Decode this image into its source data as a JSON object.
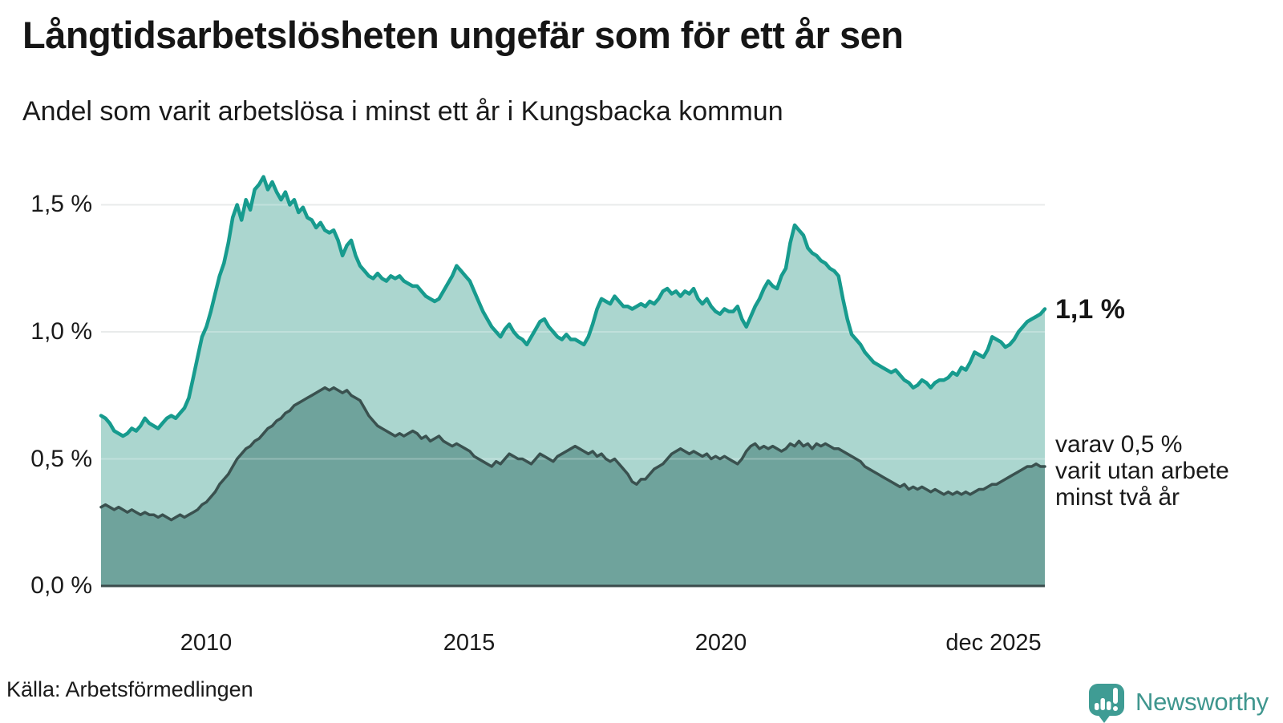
{
  "header": {
    "title": "Långtidsarbetslösheten ungefär som för ett år sen",
    "subtitle": "Andel som varit arbetslösa i minst ett år i Kungsbacka kommun"
  },
  "annotations": {
    "latest_value_label": "1,1 %",
    "secondary": [
      "varav 0,5 %",
      "varit utan arbete",
      "minst två år"
    ]
  },
  "footer": {
    "source": "Källa: Arbetsförmedlingen",
    "logo_text": "Newsworthy"
  },
  "colors": {
    "total_line": "#179b8e",
    "total_fill": "#abd6cf",
    "twoyear_line": "#3a514f",
    "twoyear_fill": "#6fa39c",
    "axis_line": "#3a4b4b",
    "gridline": "#e2e5e5",
    "logo_teal": "#3f968e"
  },
  "chart_data": {
    "type": "area",
    "title": "Långtidsarbetslösheten ungefär som för ett år sen",
    "subtitle": "Andel som varit arbetslösa i minst ett år i Kungsbacka kommun",
    "unit": "%",
    "frequency": "monthly",
    "x_start": "2008-01",
    "x_end": "2025-12",
    "ylim": [
      0,
      1.7
    ],
    "grid": "horizontal",
    "y_tick_values": [
      1.5,
      1.0,
      0.5,
      0.0
    ],
    "y_tick_labels": [
      "1,5 %",
      "1,0 %",
      "0,5 %",
      "0,0 %"
    ],
    "x_tick_labels": [
      "2010",
      "2015",
      "2020",
      "dec 2025"
    ],
    "latest_total": 1.1,
    "latest_twoyear": 0.5,
    "series": [
      {
        "name": "Andel arbetslösa minst ett år",
        "color": "#179b8e",
        "fill": "#abd6cf",
        "values": [
          0.67,
          0.66,
          0.64,
          0.61,
          0.6,
          0.59,
          0.6,
          0.62,
          0.61,
          0.63,
          0.66,
          0.64,
          0.63,
          0.62,
          0.64,
          0.66,
          0.67,
          0.66,
          0.68,
          0.7,
          0.74,
          0.82,
          0.9,
          0.98,
          1.02,
          1.08,
          1.15,
          1.22,
          1.27,
          1.35,
          1.45,
          1.5,
          1.44,
          1.52,
          1.48,
          1.56,
          1.58,
          1.61,
          1.56,
          1.59,
          1.55,
          1.52,
          1.55,
          1.5,
          1.52,
          1.47,
          1.49,
          1.45,
          1.44,
          1.41,
          1.43,
          1.4,
          1.39,
          1.4,
          1.36,
          1.3,
          1.34,
          1.36,
          1.3,
          1.26,
          1.24,
          1.22,
          1.21,
          1.23,
          1.21,
          1.2,
          1.22,
          1.21,
          1.22,
          1.2,
          1.19,
          1.18,
          1.18,
          1.16,
          1.14,
          1.13,
          1.12,
          1.13,
          1.16,
          1.19,
          1.22,
          1.26,
          1.24,
          1.22,
          1.2,
          1.16,
          1.12,
          1.08,
          1.05,
          1.02,
          1.0,
          0.98,
          1.01,
          1.03,
          1.0,
          0.98,
          0.97,
          0.95,
          0.98,
          1.01,
          1.04,
          1.05,
          1.02,
          1.0,
          0.98,
          0.97,
          0.99,
          0.97,
          0.97,
          0.96,
          0.95,
          0.98,
          1.03,
          1.09,
          1.13,
          1.12,
          1.11,
          1.14,
          1.12,
          1.1,
          1.1,
          1.09,
          1.1,
          1.11,
          1.1,
          1.12,
          1.11,
          1.13,
          1.16,
          1.17,
          1.15,
          1.16,
          1.14,
          1.16,
          1.15,
          1.17,
          1.13,
          1.11,
          1.13,
          1.1,
          1.08,
          1.07,
          1.09,
          1.08,
          1.08,
          1.1,
          1.05,
          1.02,
          1.06,
          1.1,
          1.13,
          1.17,
          1.2,
          1.18,
          1.17,
          1.22,
          1.25,
          1.35,
          1.42,
          1.4,
          1.38,
          1.33,
          1.31,
          1.3,
          1.28,
          1.27,
          1.25,
          1.24,
          1.22,
          1.13,
          1.05,
          0.99,
          0.97,
          0.95,
          0.92,
          0.9,
          0.88,
          0.87,
          0.86,
          0.85,
          0.84,
          0.85,
          0.83,
          0.81,
          0.8,
          0.78,
          0.79,
          0.81,
          0.8,
          0.78,
          0.8,
          0.81,
          0.81,
          0.82,
          0.84,
          0.83,
          0.86,
          0.85,
          0.88,
          0.92,
          0.91,
          0.9,
          0.93,
          0.98,
          0.97,
          0.96,
          0.94,
          0.95,
          0.97,
          1.0,
          1.02,
          1.04,
          1.05,
          1.06,
          1.07,
          1.09
        ]
      },
      {
        "name": "varav utan arbete minst två år",
        "color": "#3a514f",
        "fill": "#6fa39c",
        "values": [
          0.31,
          0.32,
          0.31,
          0.3,
          0.31,
          0.3,
          0.29,
          0.3,
          0.29,
          0.28,
          0.29,
          0.28,
          0.28,
          0.27,
          0.28,
          0.27,
          0.26,
          0.27,
          0.28,
          0.27,
          0.28,
          0.29,
          0.3,
          0.32,
          0.33,
          0.35,
          0.37,
          0.4,
          0.42,
          0.44,
          0.47,
          0.5,
          0.52,
          0.54,
          0.55,
          0.57,
          0.58,
          0.6,
          0.62,
          0.63,
          0.65,
          0.66,
          0.68,
          0.69,
          0.71,
          0.72,
          0.73,
          0.74,
          0.75,
          0.76,
          0.77,
          0.78,
          0.77,
          0.78,
          0.77,
          0.76,
          0.77,
          0.75,
          0.74,
          0.73,
          0.7,
          0.67,
          0.65,
          0.63,
          0.62,
          0.61,
          0.6,
          0.59,
          0.6,
          0.59,
          0.6,
          0.61,
          0.6,
          0.58,
          0.59,
          0.57,
          0.58,
          0.59,
          0.57,
          0.56,
          0.55,
          0.56,
          0.55,
          0.54,
          0.53,
          0.51,
          0.5,
          0.49,
          0.48,
          0.47,
          0.49,
          0.48,
          0.5,
          0.52,
          0.51,
          0.5,
          0.5,
          0.49,
          0.48,
          0.5,
          0.52,
          0.51,
          0.5,
          0.49,
          0.51,
          0.52,
          0.53,
          0.54,
          0.55,
          0.54,
          0.53,
          0.52,
          0.53,
          0.51,
          0.52,
          0.5,
          0.49,
          0.5,
          0.48,
          0.46,
          0.44,
          0.41,
          0.4,
          0.42,
          0.42,
          0.44,
          0.46,
          0.47,
          0.48,
          0.5,
          0.52,
          0.53,
          0.54,
          0.53,
          0.52,
          0.53,
          0.52,
          0.51,
          0.52,
          0.5,
          0.51,
          0.5,
          0.51,
          0.5,
          0.49,
          0.48,
          0.5,
          0.53,
          0.55,
          0.56,
          0.54,
          0.55,
          0.54,
          0.55,
          0.54,
          0.53,
          0.54,
          0.56,
          0.55,
          0.57,
          0.55,
          0.56,
          0.54,
          0.56,
          0.55,
          0.56,
          0.55,
          0.54,
          0.54,
          0.53,
          0.52,
          0.51,
          0.5,
          0.49,
          0.47,
          0.46,
          0.45,
          0.44,
          0.43,
          0.42,
          0.41,
          0.4,
          0.39,
          0.4,
          0.38,
          0.39,
          0.38,
          0.39,
          0.38,
          0.37,
          0.38,
          0.37,
          0.36,
          0.37,
          0.36,
          0.37,
          0.36,
          0.37,
          0.36,
          0.37,
          0.38,
          0.38,
          0.39,
          0.4,
          0.4,
          0.41,
          0.42,
          0.43,
          0.44,
          0.45,
          0.46,
          0.47,
          0.47,
          0.48,
          0.47,
          0.47
        ]
      }
    ]
  }
}
